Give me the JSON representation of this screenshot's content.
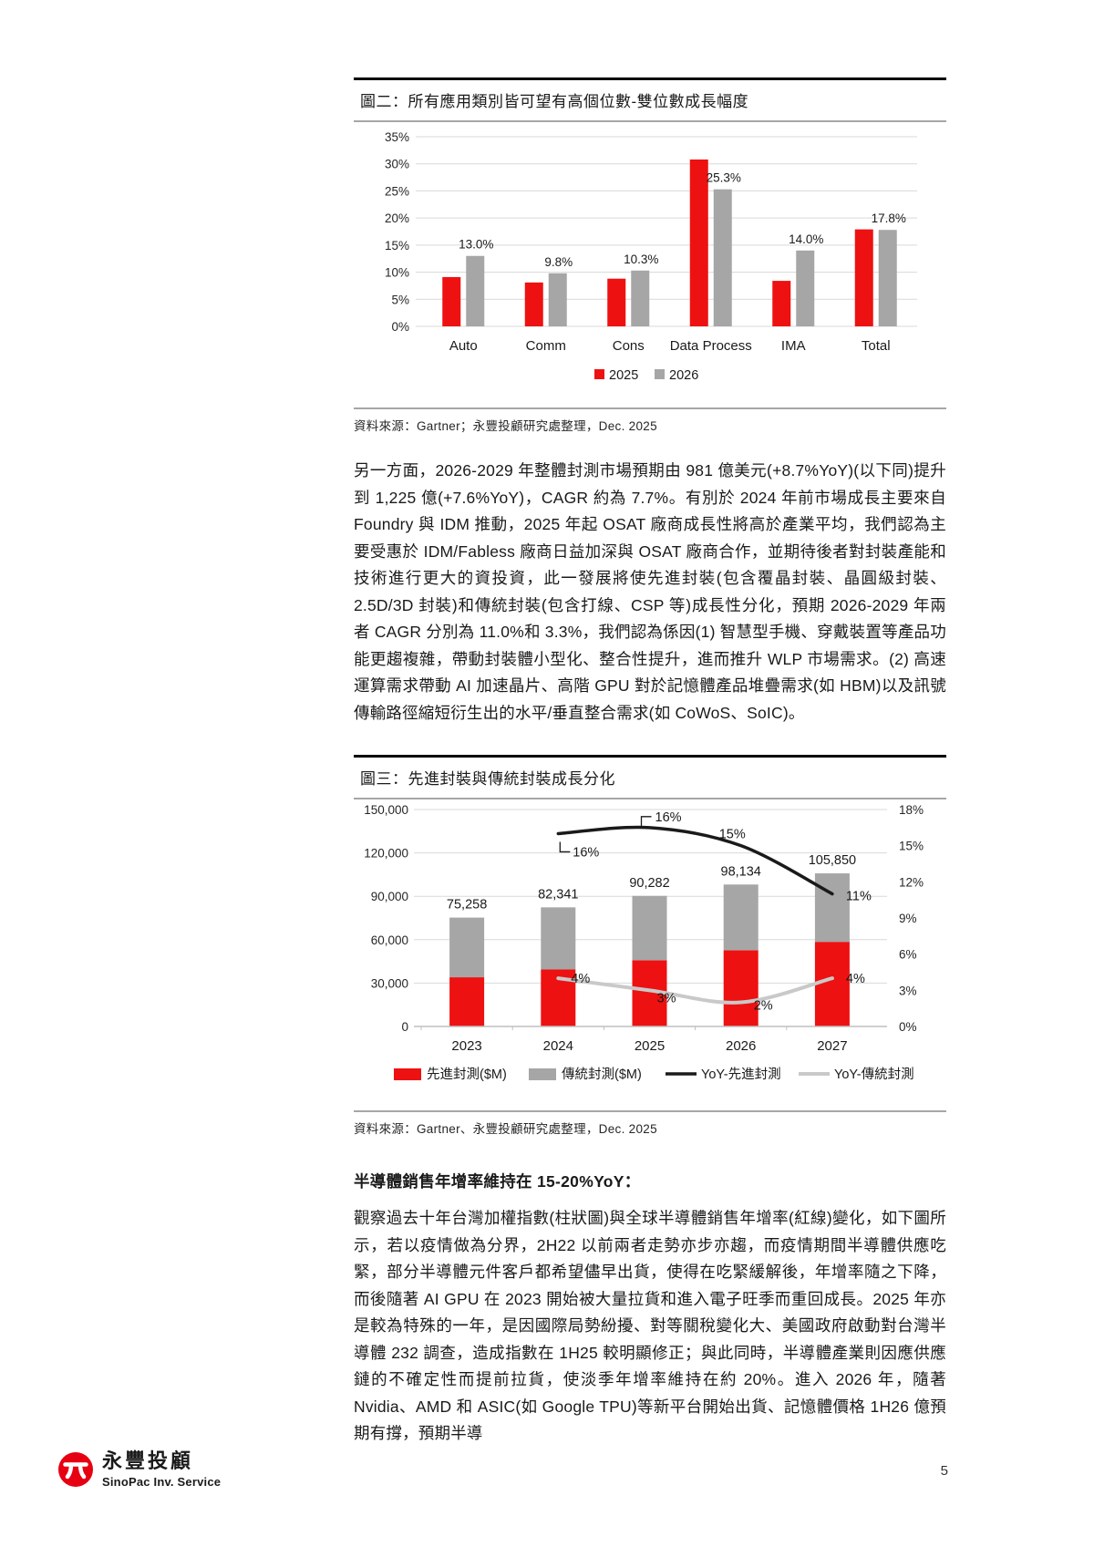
{
  "figure2": {
    "title": "圖二：所有應用類別皆可望有高個位數-雙位數成長幅度",
    "source": "資料來源：Gartner；永豐投顧研究處整理，Dec. 2025"
  },
  "figure3": {
    "title": "圖三：先進封裝與傳統封裝成長分化",
    "source": "資料來源：Gartner、永豐投顧研究處整理，Dec. 2025"
  },
  "paragraphs": {
    "p1": "另一方面，2026-2029 年整體封測市場預期由 981 億美元(+8.7%YoY)(以下同)提升到 1,225 億(+7.6%YoY)，CAGR 約為 7.7%。有別於 2024 年前市場成長主要來自 Foundry 與 IDM 推動，2025 年起 OSAT 廠商成長性將高於產業平均，我們認為主要受惠於 IDM/Fabless 廠商日益加深與 OSAT 廠商合作，並期待後者對封裝產能和技術進行更大的資投資，此一發展將使先進封裝(包含覆晶封裝、晶圓級封裝、2.5D/3D 封裝)和傳統封裝(包含打線、CSP 等)成長性分化，預期 2026-2029 年兩者 CAGR 分別為 11.0%和 3.3%，我們認為係因(1) 智慧型手機、穿戴裝置等產品功能更趨複雜，帶動封裝體小型化、整合性提升，進而推升 WLP 市場需求。(2) 高速運算需求帶動 AI 加速晶片、高階 GPU 對於記憶體產品堆疊需求(如 HBM)以及訊號傳輸路徑縮短衍生出的水平/垂直整合需求(如 CoWoS、SoIC)。",
    "heading": "半導體銷售年增率維持在 15-20%YoY：",
    "p2": "觀察過去十年台灣加權指數(柱狀圖)與全球半導體銷售年增率(紅線)變化，如下圖所示，若以疫情做為分界，2H22 以前兩者走勢亦步亦趨，而疫情期間半導體供應吃緊，部分半導體元件客戶都希望儘早出貨，使得在吃緊緩解後，年增率隨之下降，而後隨著 AI GPU 在 2023 開始被大量拉貨和進入電子旺季而重回成長。2025 年亦是較為特殊的一年，是因國際局勢紛擾、對等關稅變化大、美國政府啟動對台灣半導體 232 調查，造成指數在 1H25 較明顯修正；與此同時，半導體產業則因應供應鏈的不確定性而提前拉貨，使淡季年增率維持在約 20%。進入 2026 年，隨著 Nvidia、AMD 和 ASIC(如 Google TPU)等新平台開始出貨、記憶體價格 1H26 億預期有撐，預期半導"
  },
  "footer": {
    "brand_zh": "永豐投顧",
    "brand_en": "SinoPac Inv. Service",
    "page_number": "5",
    "brand_color": "#e60012"
  },
  "chart_data": [
    {
      "type": "bar",
      "title": "所有應用類別皆可望有高個位數-雙位數成長幅度",
      "categories": [
        "Auto",
        "Comm",
        "Cons",
        "Data Process",
        "IMA",
        "Total"
      ],
      "series": [
        {
          "name": "2025",
          "color": "#ee1111",
          "values": [
            9.1,
            8.1,
            8.8,
            30.8,
            8.4,
            17.9
          ]
        },
        {
          "name": "2026",
          "color": "#a6a6a6",
          "values": [
            13.0,
            9.8,
            10.3,
            25.3,
            14.0,
            17.8
          ]
        }
      ],
      "data_labels": [
        "13.0%",
        "9.8%",
        "10.3%",
        "25.3%",
        "14.0%",
        "17.8%"
      ],
      "xlabel": "",
      "ylabel": "",
      "ylim": [
        0,
        35
      ],
      "ytick_step": 5,
      "ytick_suffix": "%",
      "grid": true,
      "legend_position": "bottom"
    },
    {
      "type": "bar+line",
      "title": "先進封裝與傳統封裝成長分化",
      "categories": [
        "2023",
        "2024",
        "2025",
        "2026",
        "2027"
      ],
      "stacked": true,
      "bar_series": [
        {
          "name": "先進封測($M)",
          "color": "#ee1111",
          "values": [
            34000,
            39400,
            45800,
            52700,
            58500
          ]
        },
        {
          "name": "傳統封測($M)",
          "color": "#a6a6a6",
          "values": [
            41258,
            42941,
            44482,
            45434,
            47350
          ]
        }
      ],
      "total_labels": [
        "75,258",
        "82,341",
        "90,282",
        "98,134",
        "105,850"
      ],
      "line_series": [
        {
          "name": "YoY-先進封測",
          "color": "#1a1a1a",
          "axis": "right",
          "values": [
            null,
            16,
            16.5,
            15,
            11
          ],
          "labels": [
            "",
            "16%",
            "16%",
            "15%",
            "11%"
          ]
        },
        {
          "name": "YoY-傳統封測",
          "color": "#c9c9c9",
          "axis": "right",
          "values": [
            null,
            4,
            3,
            2,
            4
          ],
          "labels": [
            "",
            "4%",
            "3%",
            "2%",
            "4%"
          ]
        }
      ],
      "left_axis": {
        "lim": [
          0,
          150000
        ],
        "tick_step": 30000
      },
      "right_axis": {
        "lim": [
          0,
          18
        ],
        "tick_step": 3,
        "suffix": "%"
      },
      "grid": true,
      "legend_position": "bottom"
    }
  ]
}
